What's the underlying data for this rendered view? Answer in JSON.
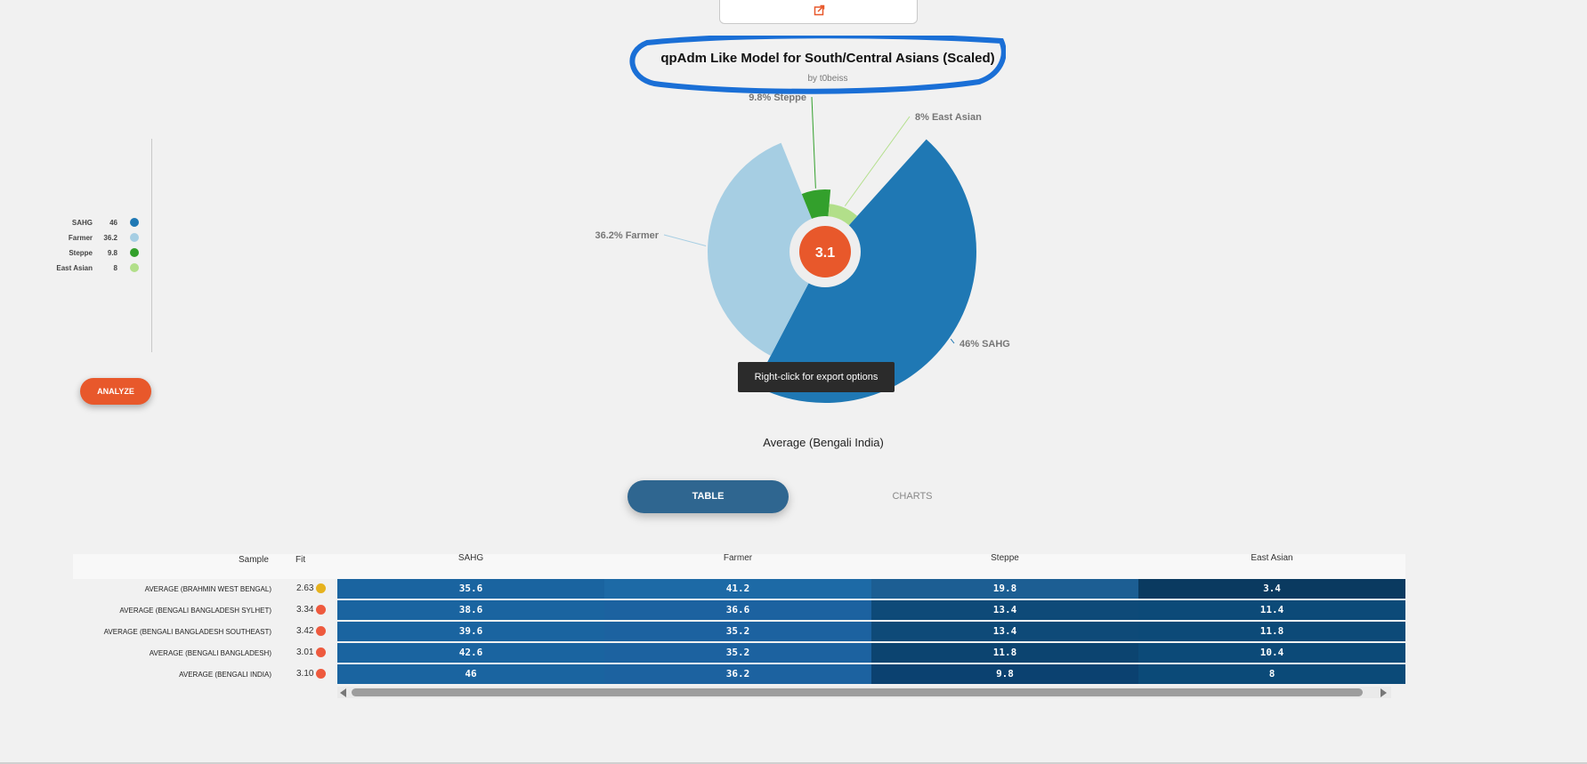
{
  "chart": {
    "title": "qpAdm Like Model for South/Central Asians (Scaled)",
    "subtitle": "by t0beiss",
    "center_value": "3.1",
    "tooltip": "Right-click for export options",
    "caption": "Average (Bengali India)"
  },
  "chart_data": {
    "type": "pie",
    "title": "qpAdm Like Model for South/Central Asians (Scaled)",
    "subtitle": "by t0beiss",
    "slices": [
      {
        "name": "SAHG",
        "value": 46,
        "label": "46%  SAHG",
        "color": "#1f78b4"
      },
      {
        "name": "Farmer",
        "value": 36.2,
        "label": "36.2%  Farmer",
        "color": "#a6cee3"
      },
      {
        "name": "Steppe",
        "value": 9.8,
        "label": "9.8%  Steppe",
        "color": "#33a02c"
      },
      {
        "name": "East Asian",
        "value": 8,
        "label": "8%  East Asian",
        "color": "#b2df8a"
      }
    ],
    "center_label": "3.1"
  },
  "legend": [
    {
      "name": "SAHG",
      "value": "46",
      "color": "#1f78b4"
    },
    {
      "name": "Farmer",
      "value": "36.2",
      "color": "#a6cee3"
    },
    {
      "name": "Steppe",
      "value": "9.8",
      "color": "#33a02c"
    },
    {
      "name": "East Asian",
      "value": "8",
      "color": "#b2df8a"
    }
  ],
  "analyze_label": "ANALYZE",
  "tabs": {
    "table": "TABLE",
    "charts": "CHARTS"
  },
  "table": {
    "headers": {
      "sample": "Sample",
      "fit": "Fit",
      "cols": [
        "SAHG",
        "Farmer",
        "Steppe",
        "East Asian"
      ]
    },
    "rows": [
      {
        "sample": "AVERAGE (BRAHMIN WEST BENGAL)",
        "fit": "2.63",
        "fit_color": "#e6b21e",
        "values": [
          "35.6",
          "41.2",
          "19.8",
          "3.4"
        ]
      },
      {
        "sample": "AVERAGE (BENGALI BANGLADESH SYLHET)",
        "fit": "3.34",
        "fit_color": "#ee5a3e",
        "values": [
          "38.6",
          "36.6",
          "13.4",
          "11.4"
        ]
      },
      {
        "sample": "AVERAGE (BENGALI BANGLADESH SOUTHEAST)",
        "fit": "3.42",
        "fit_color": "#ee5a3e",
        "values": [
          "39.6",
          "35.2",
          "13.4",
          "11.8"
        ]
      },
      {
        "sample": "AVERAGE (BENGALI BANGLADESH)",
        "fit": "3.01",
        "fit_color": "#ee5a3e",
        "values": [
          "42.6",
          "35.2",
          "11.8",
          "10.4"
        ]
      },
      {
        "sample": "AVERAGE (BENGALI INDIA)",
        "fit": "3.10",
        "fit_color": "#ee5a3e",
        "values": [
          "46",
          "36.2",
          "9.8",
          "8"
        ]
      }
    ]
  },
  "icons": {
    "share": "share-icon",
    "scroll_left": "arrow-left-icon",
    "scroll_right": "arrow-right-icon"
  }
}
